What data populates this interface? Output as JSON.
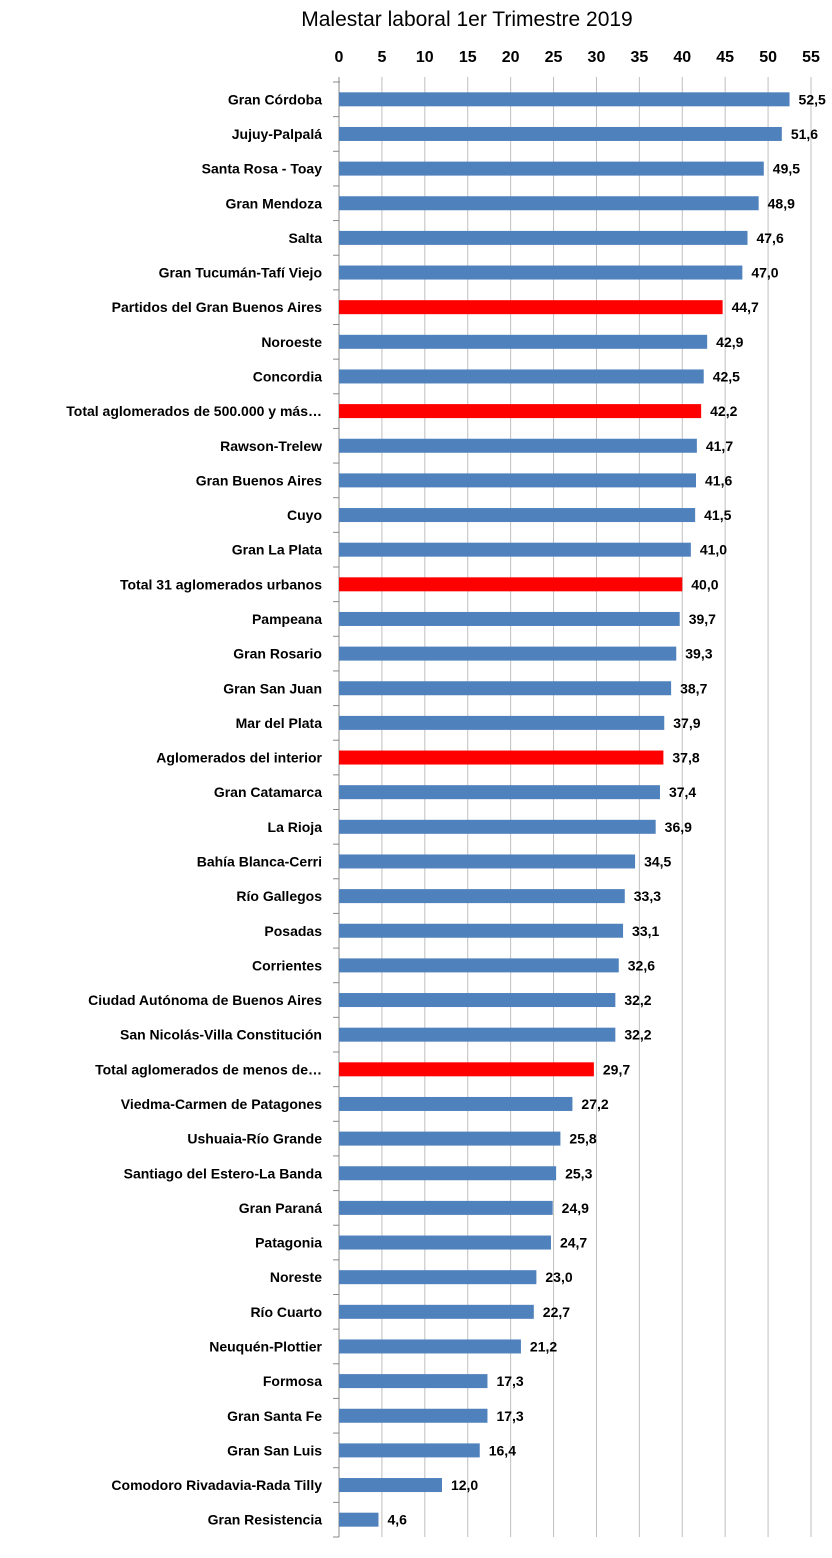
{
  "chart_data": {
    "type": "bar",
    "orientation": "horizontal",
    "title": "Malestar laboral  1er Trimestre 2019",
    "xlabel": "",
    "ylabel": "",
    "xlim": [
      0,
      55
    ],
    "xticks": [
      0,
      5,
      10,
      15,
      20,
      25,
      30,
      35,
      40,
      45,
      50,
      55
    ],
    "x_axis_position": "top",
    "grid": "vertical",
    "legend": "none",
    "colors": {
      "default": "#4F81BD",
      "highlight": "#FF0000"
    },
    "categories": [
      "Gran Córdoba",
      "Jujuy-Palpalá",
      "Santa Rosa - Toay",
      "Gran Mendoza",
      "Salta",
      "Gran Tucumán-Tafí Viejo",
      "Partidos del Gran Buenos Aires",
      "Noroeste",
      "Concordia",
      "Total aglomerados de 500.000 y más…",
      "Rawson-Trelew",
      "Gran Buenos Aires",
      "Cuyo",
      "Gran La Plata",
      "Total 31 aglomerados urbanos",
      "Pampeana",
      "Gran Rosario",
      "Gran San Juan",
      "Mar del Plata",
      "Aglomerados del interior",
      "Gran Catamarca",
      "La Rioja",
      "Bahía Blanca-Cerri",
      "Río Gallegos",
      "Posadas",
      "Corrientes",
      "Ciudad Autónoma de Buenos Aires",
      "San Nicolás-Villa Constitución",
      "Total aglomerados de menos de…",
      "Viedma-Carmen de Patagones",
      "Ushuaia-Río Grande",
      "Santiago del Estero-La Banda",
      "Gran Paraná",
      "Patagonia",
      "Noreste",
      "Río Cuarto",
      "Neuquén-Plottier",
      "Formosa",
      "Gran Santa Fe",
      "Gran San Luis",
      "Comodoro Rivadavia-Rada Tilly",
      "Gran Resistencia"
    ],
    "values": [
      52.5,
      51.6,
      49.5,
      48.9,
      47.6,
      47.0,
      44.7,
      42.9,
      42.5,
      42.2,
      41.7,
      41.6,
      41.5,
      41.0,
      40.0,
      39.7,
      39.3,
      38.7,
      37.9,
      37.8,
      37.4,
      36.9,
      34.5,
      33.3,
      33.1,
      32.6,
      32.2,
      32.2,
      29.7,
      27.2,
      25.8,
      25.3,
      24.9,
      24.7,
      23.0,
      22.7,
      21.2,
      17.3,
      17.3,
      16.4,
      12.0,
      4.6
    ],
    "data_labels": [
      "52,5",
      "51,6",
      "49,5",
      "48,9",
      "47,6",
      "47,0",
      "44,7",
      "42,9",
      "42,5",
      "42,2",
      "41,7",
      "41,6",
      "41,5",
      "41,0",
      "40,0",
      "39,7",
      "39,3",
      "38,7",
      "37,9",
      "37,8",
      "37,4",
      "36,9",
      "34,5",
      "33,3",
      "33,1",
      "32,6",
      "32,2",
      "32,2",
      "29,7",
      "27,2",
      "25,8",
      "25,3",
      "24,9",
      "24,7",
      "23,0",
      "22,7",
      "21,2",
      "17,3",
      "17,3",
      "16,4",
      "12,0",
      "4,6"
    ],
    "highlighted": [
      "Partidos del Gran Buenos Aires",
      "Total aglomerados de 500.000 y más…",
      "Total 31 aglomerados urbanos",
      "Aglomerados del interior",
      "Total aglomerados de menos de…"
    ]
  }
}
